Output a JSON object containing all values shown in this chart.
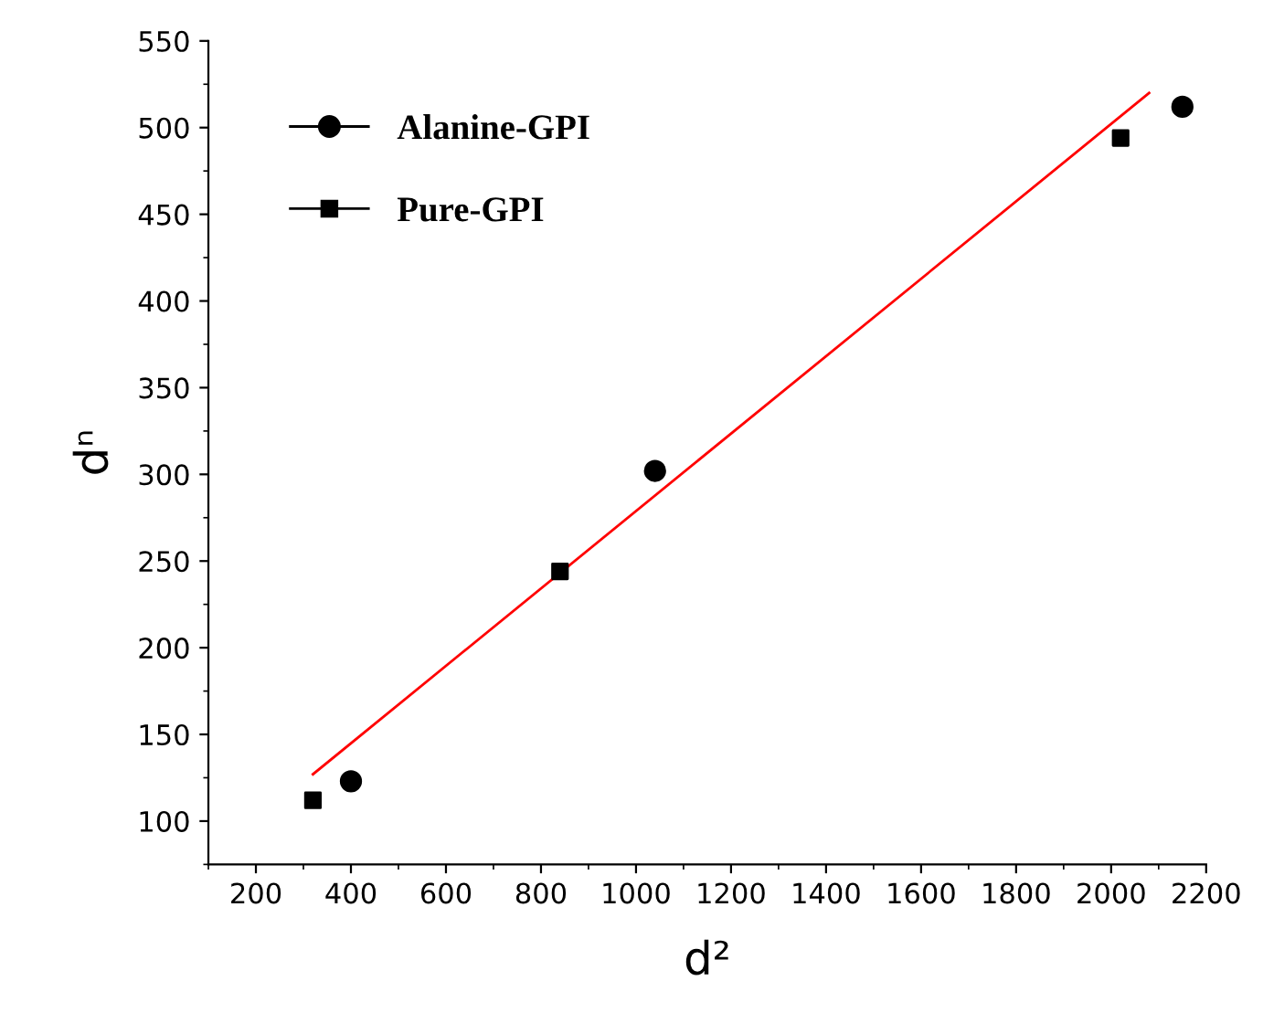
{
  "chart_data": {
    "type": "scatter",
    "xlabel": "d²",
    "ylabel": "dⁿ",
    "xlim": [
      100,
      2200
    ],
    "xticks": [
      200,
      400,
      600,
      800,
      1000,
      1200,
      1400,
      1600,
      1800,
      2000,
      2200
    ],
    "ylim": [
      75,
      550
    ],
    "yticks": [
      100,
      150,
      200,
      250,
      300,
      350,
      400,
      450,
      500,
      550
    ],
    "legend": "top left",
    "grid": false,
    "series": [
      {
        "name": "Alanine-GPI",
        "color": "#000000",
        "marker": "circle",
        "x": [
          400,
          1040,
          2150
        ],
        "values": [
          123,
          302,
          512
        ]
      },
      {
        "name": "Pure-GPI",
        "color": "#000000",
        "marker": "square",
        "x": [
          320,
          840,
          2020
        ],
        "values": [
          112,
          244,
          494
        ]
      },
      {
        "type": "line",
        "color": "#ff0000",
        "marker": "none",
        "x": [
          320,
          2080
        ],
        "values": [
          127,
          520
        ]
      }
    ]
  }
}
